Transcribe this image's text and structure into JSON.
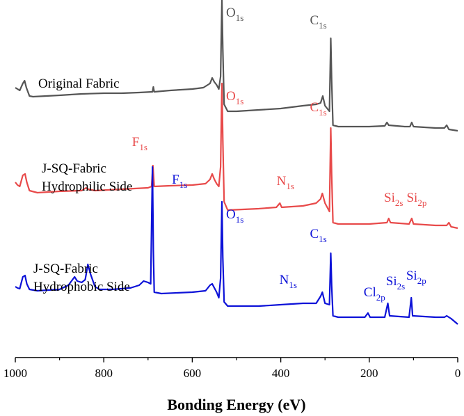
{
  "chart_data": {
    "type": "line",
    "title": "",
    "xlabel": "Bonding Energy (eV)",
    "ylabel": "",
    "xlim": [
      1000,
      0
    ],
    "x_reversed": true,
    "x_ticks": [
      1000,
      800,
      600,
      400,
      200,
      0
    ],
    "grid": false,
    "legend": "none",
    "series": [
      {
        "name": "Original Fabric",
        "color": "#555555",
        "label_lines": [
          "Original Fabric"
        ],
        "offset": 2.0,
        "points": [
          [
            1000,
            0.14
          ],
          [
            995,
            0.12
          ],
          [
            990,
            0.1
          ],
          [
            983,
            0.2
          ],
          [
            979,
            0.24
          ],
          [
            975,
            0.14
          ],
          [
            968,
            0.02
          ],
          [
            960,
            0.01
          ],
          [
            900,
            0.03
          ],
          [
            850,
            0.05
          ],
          [
            800,
            0.06
          ],
          [
            760,
            0.06
          ],
          [
            720,
            0.07
          ],
          [
            690,
            0.08
          ],
          [
            688,
            0.15
          ],
          [
            686,
            0.08
          ],
          [
            650,
            0.1
          ],
          [
            600,
            0.12
          ],
          [
            575,
            0.14
          ],
          [
            560,
            0.2
          ],
          [
            555,
            0.28
          ],
          [
            550,
            0.22
          ],
          [
            545,
            0.18
          ],
          [
            540,
            0.12
          ],
          [
            536,
            0.3
          ],
          [
            533,
            1.4
          ],
          [
            531,
            0.7
          ],
          [
            528,
            -0.1
          ],
          [
            520,
            -0.2
          ],
          [
            500,
            -0.2
          ],
          [
            450,
            -0.18
          ],
          [
            400,
            -0.16
          ],
          [
            350,
            -0.12
          ],
          [
            320,
            -0.1
          ],
          [
            310,
            -0.08
          ],
          [
            305,
            0.02
          ],
          [
            300,
            -0.12
          ],
          [
            290,
            -0.2
          ],
          [
            287,
            0.85
          ],
          [
            285,
            0.25
          ],
          [
            282,
            -0.4
          ],
          [
            270,
            -0.42
          ],
          [
            250,
            -0.42
          ],
          [
            200,
            -0.42
          ],
          [
            165,
            -0.41
          ],
          [
            160,
            -0.36
          ],
          [
            156,
            -0.4
          ],
          [
            120,
            -0.42
          ],
          [
            108,
            -0.42
          ],
          [
            104,
            -0.36
          ],
          [
            100,
            -0.42
          ],
          [
            50,
            -0.44
          ],
          [
            30,
            -0.44
          ],
          [
            25,
            -0.4
          ],
          [
            20,
            -0.46
          ],
          [
            0,
            -0.48
          ]
        ],
        "peaks": [
          {
            "element": "O",
            "subscript": "1s",
            "x": 533
          },
          {
            "element": "C",
            "subscript": "1s",
            "x": 287
          }
        ]
      },
      {
        "name": "J-SQ-Fabric Hydrophilic Side",
        "color": "#e84a4a",
        "label_lines": [
          "J-SQ-Fabric",
          "Hydrophilic Side"
        ],
        "offset": 0.6,
        "points": [
          [
            1000,
            0.18
          ],
          [
            995,
            0.14
          ],
          [
            990,
            0.12
          ],
          [
            983,
            0.28
          ],
          [
            978,
            0.3
          ],
          [
            974,
            0.18
          ],
          [
            968,
            0.06
          ],
          [
            950,
            0.03
          ],
          [
            900,
            0.05
          ],
          [
            850,
            0.06
          ],
          [
            840,
            0.1
          ],
          [
            835,
            0.08
          ],
          [
            820,
            0.06
          ],
          [
            760,
            0.08
          ],
          [
            700,
            0.1
          ],
          [
            692,
            0.12
          ],
          [
            689,
            0.42
          ],
          [
            686,
            0.12
          ],
          [
            650,
            0.13
          ],
          [
            600,
            0.14
          ],
          [
            570,
            0.16
          ],
          [
            560,
            0.22
          ],
          [
            555,
            0.3
          ],
          [
            550,
            0.22
          ],
          [
            545,
            0.16
          ],
          [
            540,
            0.12
          ],
          [
            536,
            0.4
          ],
          [
            533,
            1.6
          ],
          [
            531,
            0.8
          ],
          [
            528,
            -0.1
          ],
          [
            520,
            -0.22
          ],
          [
            450,
            -0.2
          ],
          [
            410,
            -0.18
          ],
          [
            402,
            -0.12
          ],
          [
            398,
            -0.18
          ],
          [
            350,
            -0.16
          ],
          [
            320,
            -0.12
          ],
          [
            310,
            -0.06
          ],
          [
            306,
            0.02
          ],
          [
            300,
            -0.12
          ],
          [
            290,
            -0.24
          ],
          [
            287,
            0.96
          ],
          [
            285,
            0.3
          ],
          [
            282,
            -0.4
          ],
          [
            270,
            -0.42
          ],
          [
            220,
            -0.42
          ],
          [
            200,
            -0.42
          ],
          [
            160,
            -0.4
          ],
          [
            156,
            -0.34
          ],
          [
            152,
            -0.4
          ],
          [
            110,
            -0.42
          ],
          [
            104,
            -0.34
          ],
          [
            100,
            -0.42
          ],
          [
            50,
            -0.44
          ],
          [
            25,
            -0.44
          ],
          [
            20,
            -0.4
          ],
          [
            15,
            -0.46
          ],
          [
            0,
            -0.48
          ]
        ],
        "peaks": [
          {
            "element": "F",
            "subscript": "1s",
            "x": 689
          },
          {
            "element": "O",
            "subscript": "1s",
            "x": 533
          },
          {
            "element": "N",
            "subscript": "1s",
            "x": 400
          },
          {
            "element": "C",
            "subscript": "1s",
            "x": 287
          },
          {
            "element": "Si",
            "subscript": "2s",
            "x": 154
          },
          {
            "element": "Si",
            "subscript": "2p",
            "x": 103
          }
        ]
      },
      {
        "name": "J-SQ-Fabric Hydrophobic Side",
        "color": "#0d12d8",
        "label_lines": [
          "J-SQ-Fabric",
          "Hydrophobic Side"
        ],
        "offset": -0.8,
        "points": [
          [
            1000,
            0.08
          ],
          [
            995,
            0.06
          ],
          [
            990,
            0.05
          ],
          [
            983,
            0.22
          ],
          [
            978,
            0.24
          ],
          [
            974,
            0.12
          ],
          [
            968,
            0.04
          ],
          [
            950,
            0.02
          ],
          [
            900,
            0.04
          ],
          [
            880,
            0.1
          ],
          [
            866,
            0.22
          ],
          [
            860,
            0.16
          ],
          [
            850,
            0.14
          ],
          [
            842,
            0.18
          ],
          [
            836,
            0.4
          ],
          [
            830,
            0.26
          ],
          [
            820,
            0.08
          ],
          [
            810,
            0.04
          ],
          [
            780,
            0.04
          ],
          [
            740,
            0.06
          ],
          [
            720,
            0.1
          ],
          [
            710,
            0.16
          ],
          [
            700,
            0.14
          ],
          [
            694,
            0.12
          ],
          [
            690,
            1.8
          ],
          [
            688,
            0.6
          ],
          [
            686,
            0.0
          ],
          [
            670,
            -0.02
          ],
          [
            600,
            0.0
          ],
          [
            570,
            0.02
          ],
          [
            560,
            0.1
          ],
          [
            555,
            0.12
          ],
          [
            550,
            0.06
          ],
          [
            545,
            0.0
          ],
          [
            540,
            -0.08
          ],
          [
            536,
            0.2
          ],
          [
            533,
            1.3
          ],
          [
            531,
            0.5
          ],
          [
            528,
            -0.14
          ],
          [
            520,
            -0.2
          ],
          [
            450,
            -0.2
          ],
          [
            400,
            -0.18
          ],
          [
            350,
            -0.16
          ],
          [
            320,
            -0.16
          ],
          [
            310,
            -0.06
          ],
          [
            306,
            0.0
          ],
          [
            300,
            -0.16
          ],
          [
            290,
            -0.18
          ],
          [
            287,
            0.56
          ],
          [
            285,
            0.1
          ],
          [
            282,
            -0.34
          ],
          [
            270,
            -0.36
          ],
          [
            210,
            -0.36
          ],
          [
            203,
            -0.3
          ],
          [
            198,
            -0.36
          ],
          [
            165,
            -0.36
          ],
          [
            158,
            -0.16
          ],
          [
            154,
            -0.34
          ],
          [
            110,
            -0.36
          ],
          [
            105,
            -0.08
          ],
          [
            102,
            -0.34
          ],
          [
            50,
            -0.36
          ],
          [
            30,
            -0.36
          ],
          [
            25,
            -0.34
          ],
          [
            15,
            -0.38
          ],
          [
            0,
            -0.46
          ]
        ],
        "peaks": [
          {
            "element": "F",
            "subscript": "1s",
            "x": 690
          },
          {
            "element": "O",
            "subscript": "1s",
            "x": 533
          },
          {
            "element": "N",
            "subscript": "1s",
            "x": 400
          },
          {
            "element": "C",
            "subscript": "1s",
            "x": 287
          },
          {
            "element": "Cl",
            "subscript": "2p",
            "x": 200
          },
          {
            "element": "Si",
            "subscript": "2s",
            "x": 156
          },
          {
            "element": "Si",
            "subscript": "2p",
            "x": 104
          }
        ]
      }
    ]
  }
}
